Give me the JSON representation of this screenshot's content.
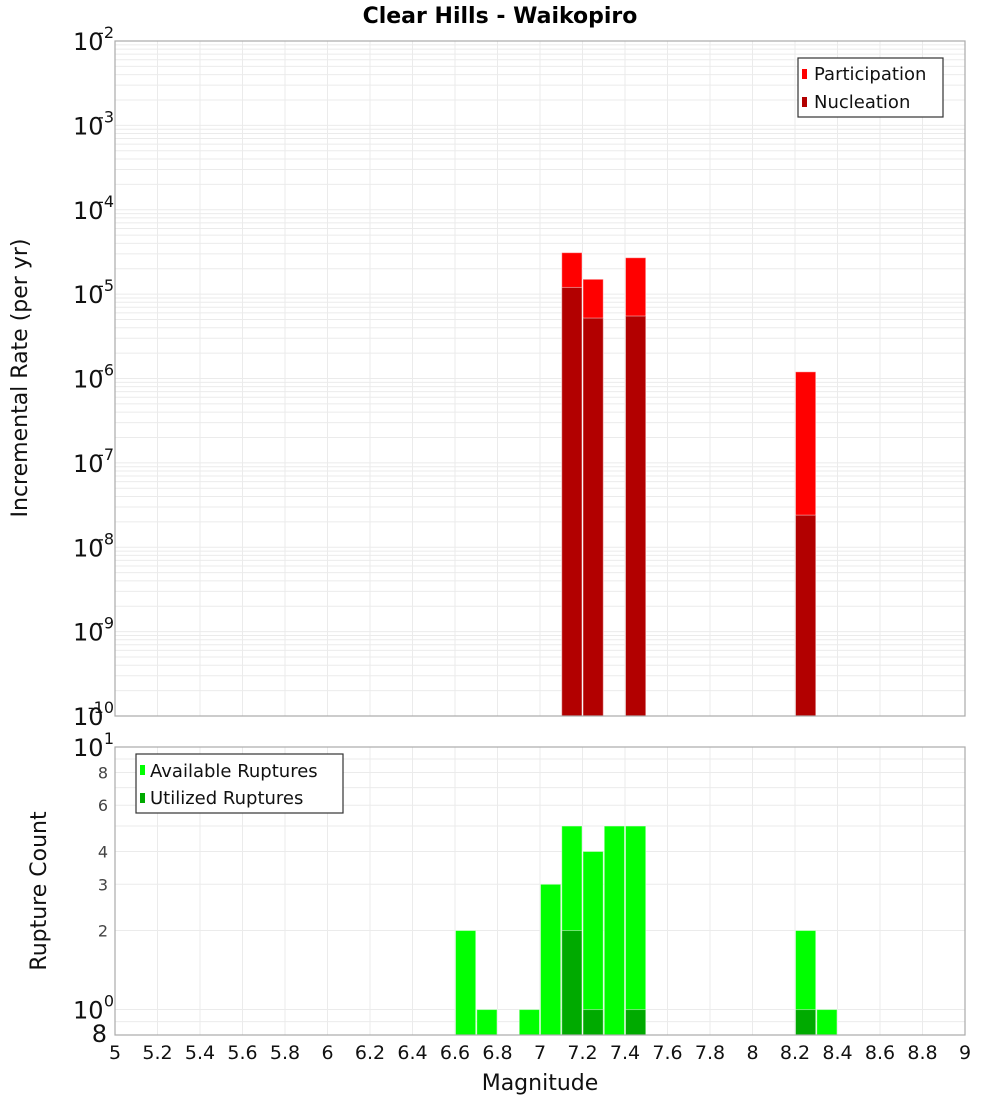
{
  "title": "Clear Hills - Waikopiro",
  "xlabel": "Magnitude",
  "chart_data": [
    {
      "type": "bar",
      "title": "Clear Hills - Waikopiro",
      "xlabel": "",
      "ylabel": "Incremental Rate (per yr)",
      "yscale": "log",
      "xlim": [
        5,
        9
      ],
      "ylim": [
        1e-10,
        0.01
      ],
      "grid": true,
      "bar_width": 0.1,
      "show_x_tick_labels": false,
      "x_ticks": [
        5,
        5.2,
        5.4,
        5.6,
        5.8,
        6,
        6.2,
        6.4,
        6.6,
        6.8,
        7,
        7.2,
        7.4,
        7.6,
        7.8,
        8,
        8.2,
        8.4,
        8.6,
        8.8,
        9
      ],
      "y_tick_labels": [
        {
          "value": 0.01,
          "base": "10",
          "exp": "-2"
        },
        {
          "value": 0.001,
          "base": "10",
          "exp": "-3"
        },
        {
          "value": 0.0001,
          "base": "10",
          "exp": "-4"
        },
        {
          "value": 1e-05,
          "base": "10",
          "exp": "-5"
        },
        {
          "value": 1e-06,
          "base": "10",
          "exp": "-6"
        },
        {
          "value": 1e-07,
          "base": "10",
          "exp": "-7"
        },
        {
          "value": 1e-08,
          "base": "10",
          "exp": "-8"
        },
        {
          "value": 1e-09,
          "base": "10",
          "exp": "-9"
        },
        {
          "value": 1e-10,
          "base": "10",
          "exp": "-10"
        }
      ],
      "legend": {
        "position": "top-right",
        "entries": [
          "Participation",
          "Nucleation"
        ]
      },
      "series": [
        {
          "name": "Participation",
          "color": "#ff0000",
          "x": [
            7.15,
            7.25,
            7.45,
            8.25
          ],
          "values": [
            3.1e-05,
            1.5e-05,
            2.7e-05,
            1.2e-06
          ]
        },
        {
          "name": "Nucleation",
          "color": "#b20000",
          "x": [
            7.15,
            7.25,
            7.45,
            8.25
          ],
          "values": [
            1.2e-05,
            5.2e-06,
            5.5e-06,
            2.4e-08
          ]
        }
      ]
    },
    {
      "type": "bar",
      "title": "",
      "xlabel": "Magnitude",
      "ylabel": "Rupture Count",
      "yscale": "log",
      "xlim": [
        5,
        9
      ],
      "ylim": [
        0.8,
        10
      ],
      "grid": true,
      "bar_width": 0.1,
      "show_x_tick_labels": true,
      "x_ticks": [
        5,
        5.2,
        5.4,
        5.6,
        5.8,
        6,
        6.2,
        6.4,
        6.6,
        6.8,
        7,
        7.2,
        7.4,
        7.6,
        7.8,
        8,
        8.2,
        8.4,
        8.6,
        8.8,
        9
      ],
      "x_tick_labels": [
        "5",
        "5.2",
        "5.4",
        "5.6",
        "5.8",
        "6",
        "6.2",
        "6.4",
        "6.6",
        "6.8",
        "7",
        "7.2",
        "7.4",
        "7.6",
        "7.8",
        "8",
        "8.2",
        "8.4",
        "8.6",
        "8.8",
        "9"
      ],
      "y_tick_labels": [
        {
          "value": 10,
          "base": "10",
          "exp": "1"
        },
        {
          "value": 8,
          "label": "8",
          "minor": true
        },
        {
          "value": 6,
          "label": "6",
          "minor": true
        },
        {
          "value": 4,
          "label": "4",
          "minor": true
        },
        {
          "value": 3,
          "label": "3",
          "minor": true
        },
        {
          "value": 2,
          "label": "2",
          "minor": true
        },
        {
          "value": 1,
          "base": "10",
          "exp": "0"
        },
        {
          "value": 0.8,
          "label": "8",
          "minor": false
        }
      ],
      "legend": {
        "position": "top-left",
        "entries": [
          "Available Ruptures",
          "Utilized Ruptures"
        ]
      },
      "series": [
        {
          "name": "Available Ruptures",
          "color": "#00ff00",
          "x": [
            6.65,
            6.75,
            6.95,
            7.05,
            7.15,
            7.25,
            7.35,
            7.45,
            8.25,
            8.35
          ],
          "values": [
            2,
            1,
            1,
            3,
            5,
            4,
            5,
            5,
            2,
            1
          ]
        },
        {
          "name": "Utilized Ruptures",
          "color": "#00aa00",
          "x": [
            7.15,
            7.25,
            7.45,
            8.25
          ],
          "values": [
            2,
            1,
            1,
            1
          ]
        }
      ]
    }
  ]
}
